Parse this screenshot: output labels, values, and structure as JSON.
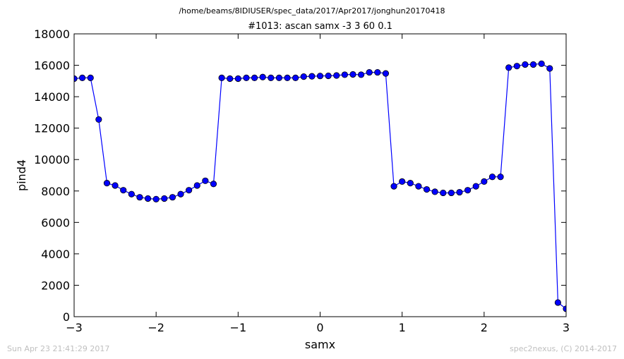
{
  "header": {
    "path": "/home/beams/8IDIUSER/spec_data/2017/Apr2017/jonghun20170418"
  },
  "footer": {
    "timestamp": "Sun Apr 23 21:41:29 2017",
    "credit": "spec2nexus, (C) 2014-2017"
  },
  "chart_data": {
    "type": "line",
    "title": "#1013: ascan  samx -3 3  60 0.1",
    "xlabel": "samx",
    "ylabel": "pind4",
    "xlim": [
      -3,
      3
    ],
    "ylim": [
      0,
      18000
    ],
    "xticks": [
      -3,
      -2,
      -1,
      0,
      1,
      2,
      3
    ],
    "xtick_labels": [
      "−3",
      "−2",
      "−1",
      "0",
      "1",
      "2",
      "3"
    ],
    "yticks": [
      0,
      2000,
      4000,
      6000,
      8000,
      10000,
      12000,
      14000,
      16000,
      18000
    ],
    "ytick_labels": [
      "0",
      "2000",
      "4000",
      "6000",
      "8000",
      "10000",
      "12000",
      "14000",
      "16000",
      "18000"
    ],
    "grid": false,
    "line_color": "#0000ff",
    "marker_color": "#0000ff",
    "series": [
      {
        "x": [
          -3.0,
          -2.9,
          -2.8,
          -2.7,
          -2.6,
          -2.5,
          -2.4,
          -2.3,
          -2.2,
          -2.1,
          -2.0,
          -1.9,
          -1.8,
          -1.7,
          -1.6,
          -1.5,
          -1.4,
          -1.3,
          -1.2,
          -1.1,
          -1.0,
          -0.9,
          -0.8,
          -0.7,
          -0.6,
          -0.5,
          -0.4,
          -0.3,
          -0.2,
          -0.1,
          0.0,
          0.1,
          0.2,
          0.3,
          0.4,
          0.5,
          0.6,
          0.7,
          0.8,
          0.9,
          1.0,
          1.1,
          1.2,
          1.3,
          1.4,
          1.5,
          1.6,
          1.7,
          1.8,
          1.9,
          2.0,
          2.1,
          2.2,
          2.3,
          2.4,
          2.5,
          2.6,
          2.7,
          2.8,
          2.9,
          3.0
        ],
        "y": [
          15150,
          15200,
          15200,
          12550,
          8500,
          8350,
          8050,
          7800,
          7600,
          7520,
          7480,
          7520,
          7600,
          7800,
          8050,
          8350,
          8650,
          8450,
          15200,
          15150,
          15150,
          15200,
          15200,
          15250,
          15200,
          15200,
          15200,
          15200,
          15280,
          15300,
          15320,
          15330,
          15350,
          15400,
          15420,
          15400,
          15550,
          15550,
          15480,
          8300,
          8600,
          8500,
          8300,
          8100,
          7950,
          7880,
          7880,
          7920,
          8050,
          8300,
          8600,
          8900,
          8900,
          15850,
          15950,
          16050,
          16050,
          16100,
          15800,
          900,
          500
        ]
      }
    ]
  }
}
